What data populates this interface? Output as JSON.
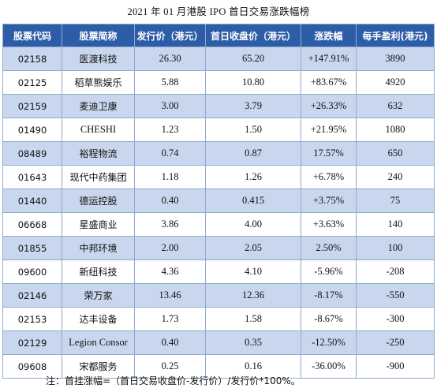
{
  "title": "2021 年 01 月港股 IPO 首日交易涨跌幅榜",
  "columns": [
    "股票代码",
    "股票简称",
    "发行价（港元）",
    "首日收盘价（港元）",
    "涨跌幅",
    "每手盈利(港元)"
  ],
  "rows": [
    {
      "code": "02158",
      "name": "医渡科技",
      "issue": "26.30",
      "close": "65.20",
      "change": "+147.91%",
      "profit": "3890"
    },
    {
      "code": "02125",
      "name": "稻草熊娱乐",
      "issue": "5.88",
      "close": "10.80",
      "change": "+83.67%",
      "profit": "4920"
    },
    {
      "code": "02159",
      "name": "麦迪卫康",
      "issue": "3.00",
      "close": "3.79",
      "change": "+26.33%",
      "profit": "632"
    },
    {
      "code": "01490",
      "name": "CHESHI",
      "issue": "1.23",
      "close": "1.50",
      "change": "+21.95%",
      "profit": "1080"
    },
    {
      "code": "08489",
      "name": "裕程物流",
      "issue": "0.74",
      "close": "0.87",
      "change": "17.57%",
      "profit": "650"
    },
    {
      "code": "01643",
      "name": "现代中药集团",
      "issue": "1.18",
      "close": "1.26",
      "change": "+6.78%",
      "profit": "240"
    },
    {
      "code": "01440",
      "name": "德运控股",
      "issue": "0.40",
      "close": "0.415",
      "change": "+3.75%",
      "profit": "75"
    },
    {
      "code": "06668",
      "name": "星盛商业",
      "issue": "3.86",
      "close": "4.00",
      "change": "+3.63%",
      "profit": "140"
    },
    {
      "code": "01855",
      "name": "中邦环境",
      "issue": "2.00",
      "close": "2.05",
      "change": "2.50%",
      "profit": "100"
    },
    {
      "code": "09600",
      "name": "新纽科技",
      "issue": "4.36",
      "close": "4.10",
      "change": "-5.96%",
      "profit": "-208"
    },
    {
      "code": "02146",
      "name": "荣万家",
      "issue": "13.46",
      "close": "12.36",
      "change": "-8.17%",
      "profit": "-550"
    },
    {
      "code": "02153",
      "name": "达丰设备",
      "issue": "1.73",
      "close": "1.58",
      "change": "-8.67%",
      "profit": "-300"
    },
    {
      "code": "02129",
      "name": "Legion Consor",
      "issue": "0.40",
      "close": "0.35",
      "change": "-12.50%",
      "profit": "-250"
    },
    {
      "code": "09608",
      "name": "宋都服务",
      "issue": "0.25",
      "close": "0.16",
      "change": "-36.00%",
      "profit": "-900"
    }
  ],
  "note": "注：首挂涨幅=（首日交易收盘价-发行价）/发行价*100%。",
  "colors": {
    "header_bg": "#2e5da8",
    "row_shade": "#c9d7ee",
    "border": "#8faad0"
  }
}
